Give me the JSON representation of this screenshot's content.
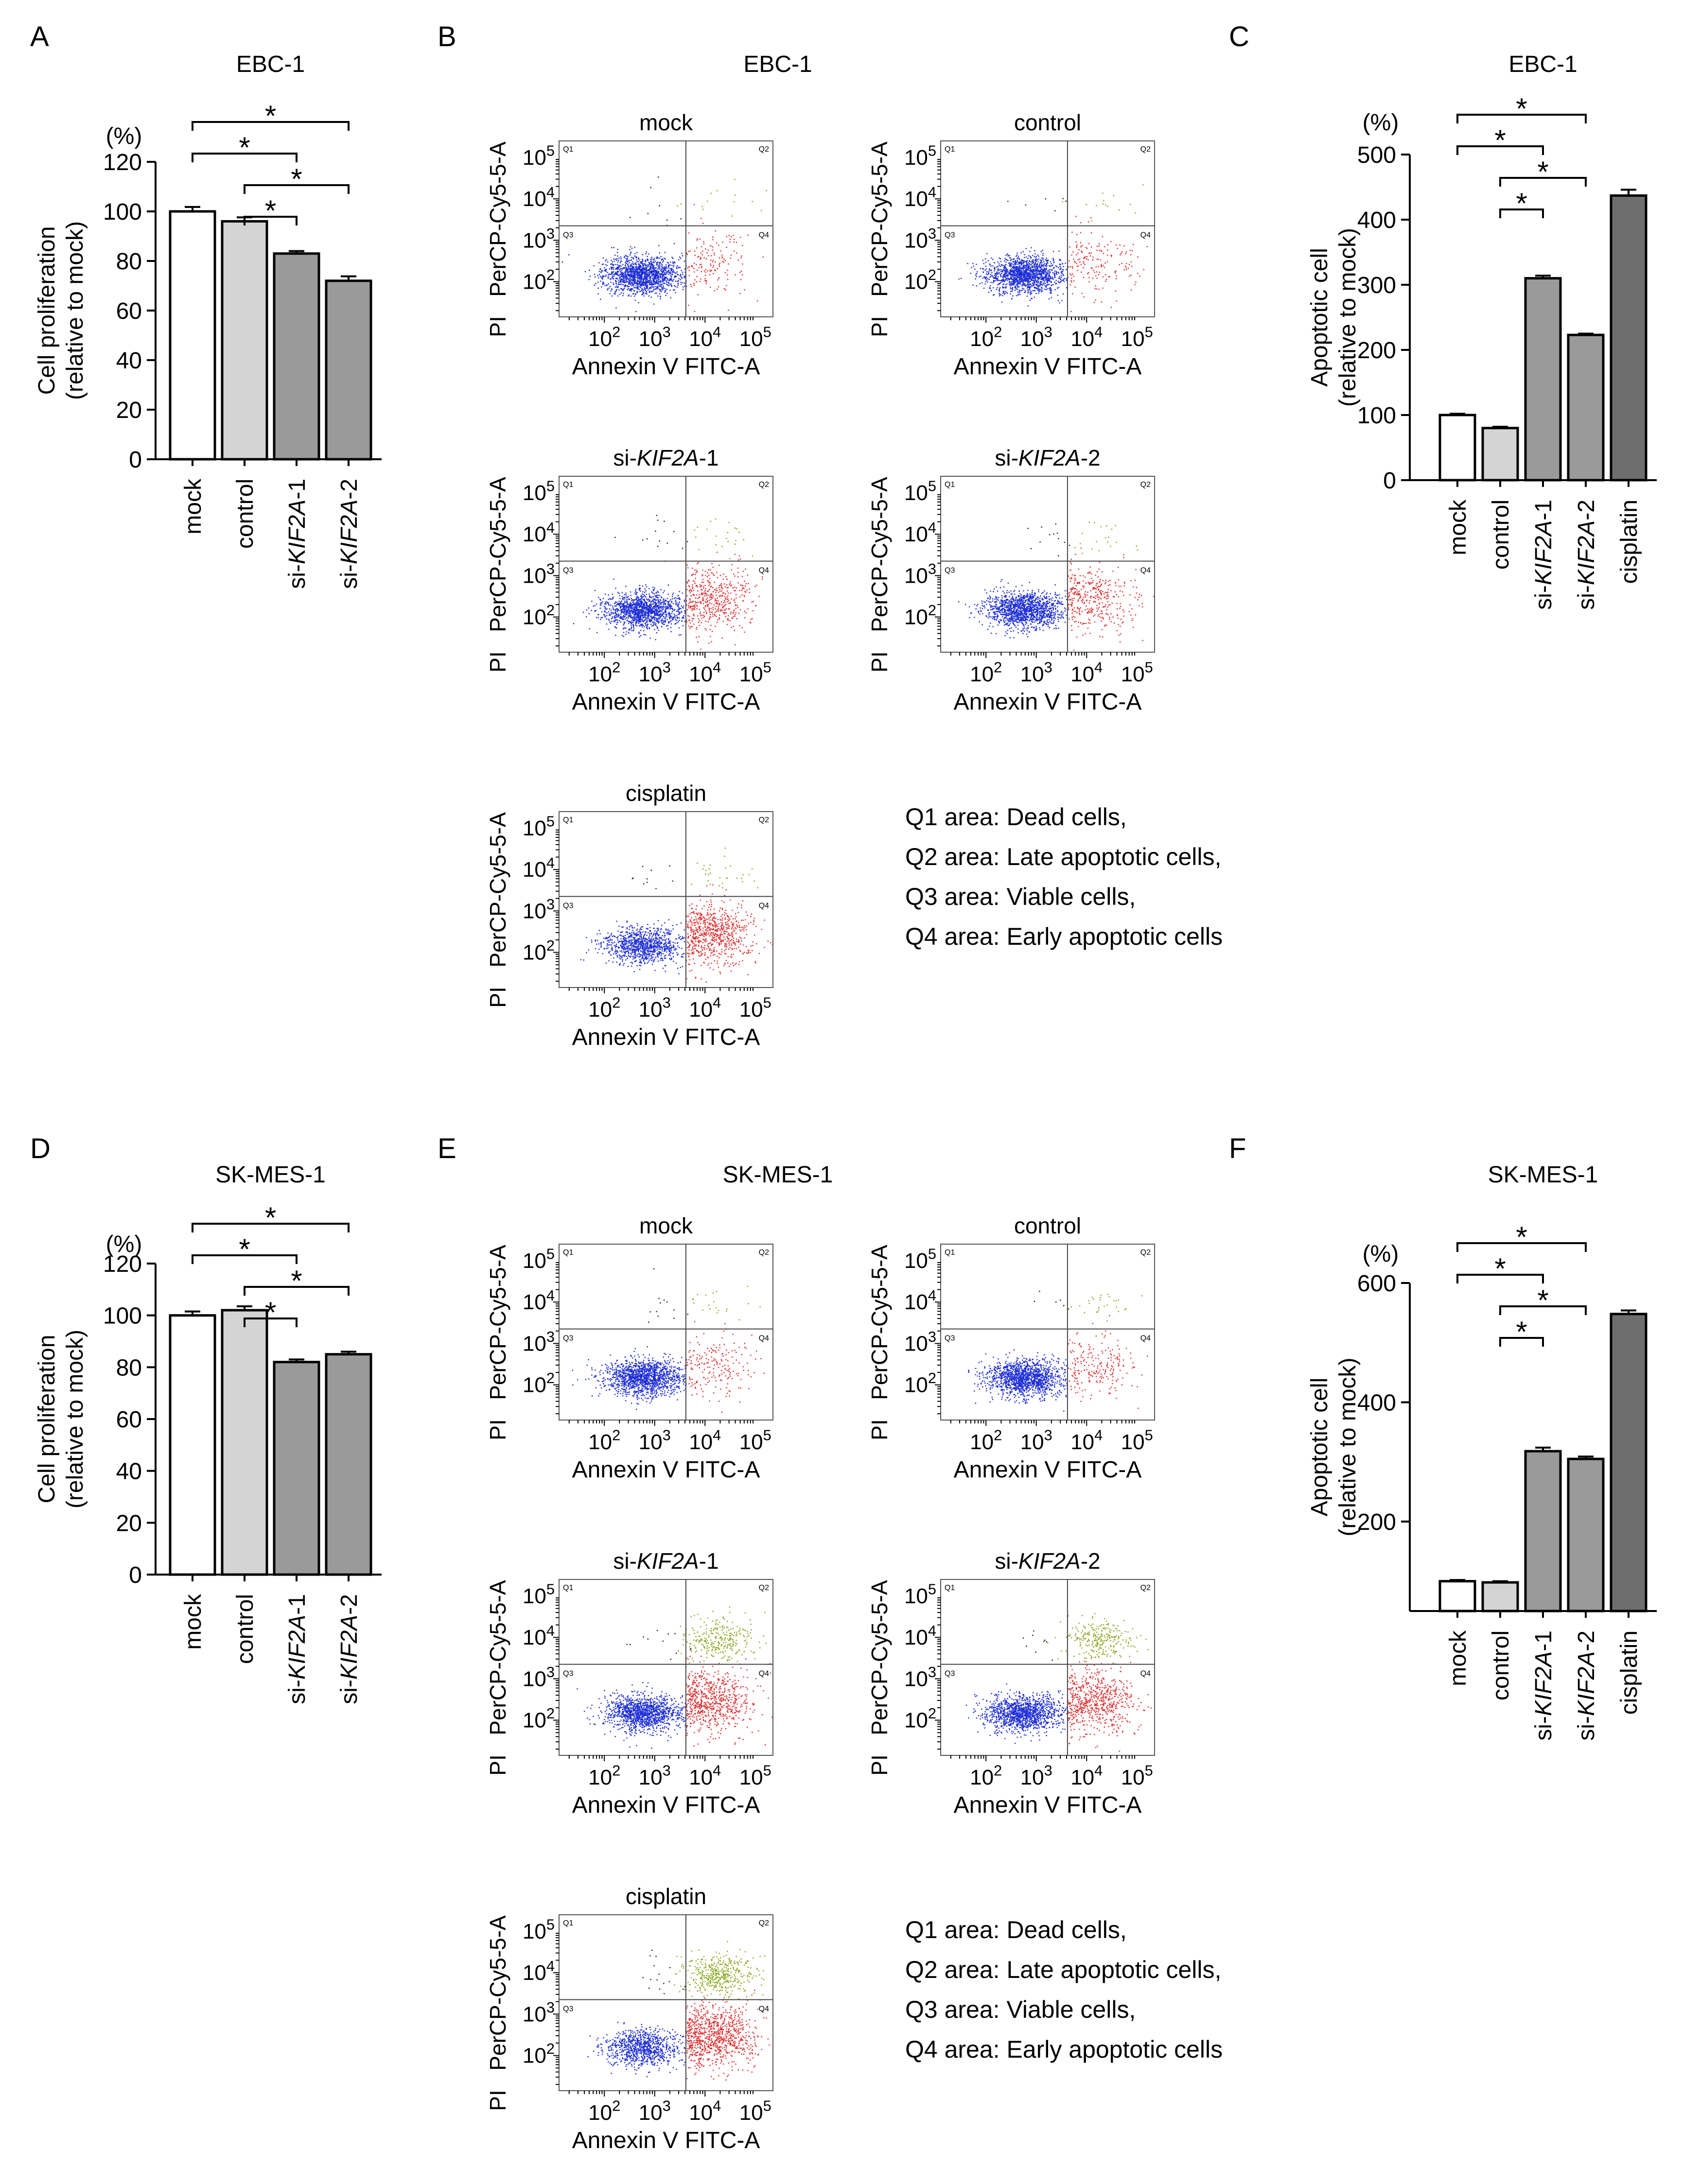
{
  "panel_letters": {
    "A": "A",
    "B": "B",
    "C": "C",
    "D": "D",
    "E": "E",
    "F": "F"
  },
  "legend": [
    "Q1 area: Dead cells,",
    "Q2 area: Late apoptotic cells,",
    "Q3 area: Viable cells,",
    "Q4 area: Early apoptotic cells"
  ],
  "colors": {
    "mock": "#ffffff",
    "control": "#d4d4d4",
    "si1": "#9a9a9a",
    "si2": "#9a9a9a",
    "cisplatin": "#6e6e6e",
    "viable": "#1f2fd6",
    "early": "#e03030",
    "late": "#8aa61e",
    "dead": "#222222"
  },
  "chart_data": [
    {
      "id": "A",
      "type": "bar",
      "title": "EBC-1",
      "ylabel": [
        "Cell proliferation",
        "(relative to mock)"
      ],
      "yunit": "(%)",
      "ylim": [
        0,
        120
      ],
      "yticks": [
        0,
        20,
        40,
        60,
        80,
        100,
        120
      ],
      "categories": [
        {
          "pre": "",
          "it": "",
          "post": "mock"
        },
        {
          "pre": "",
          "it": "",
          "post": "control"
        },
        {
          "pre": "si-",
          "it": "KIF2A",
          "post": "-1"
        },
        {
          "pre": "si-",
          "it": "KIF2A",
          "post": "-2"
        }
      ],
      "values": [
        100,
        96,
        83,
        72
      ],
      "errors": [
        1.8,
        1.6,
        1.0,
        1.8
      ],
      "significance": [
        {
          "from": 0,
          "to": 3,
          "label": "*"
        },
        {
          "from": 0,
          "to": 2,
          "label": "*"
        },
        {
          "from": 1,
          "to": 3,
          "label": "*"
        },
        {
          "from": 1,
          "to": 2,
          "label": "*"
        }
      ]
    },
    {
      "id": "C",
      "type": "bar",
      "title": "EBC-1",
      "ylabel": [
        "Apoptotic cell",
        "(relative to mock)"
      ],
      "yunit": "(%)",
      "ylim": [
        0,
        500
      ],
      "yticks": [
        0,
        100,
        200,
        300,
        400,
        500
      ],
      "categories": [
        {
          "pre": "",
          "it": "",
          "post": "mock"
        },
        {
          "pre": "",
          "it": "",
          "post": "control"
        },
        {
          "pre": "si-",
          "it": "KIF2A",
          "post": "-1"
        },
        {
          "pre": "si-",
          "it": "KIF2A",
          "post": "-2"
        },
        {
          "pre": "",
          "it": "",
          "post": "cisplatin"
        }
      ],
      "values": [
        100,
        80,
        310,
        223,
        437
      ],
      "errors": [
        2,
        2,
        4,
        2,
        9
      ],
      "significance": [
        {
          "from": 0,
          "to": 3,
          "label": "*"
        },
        {
          "from": 0,
          "to": 2,
          "label": "*"
        },
        {
          "from": 1,
          "to": 3,
          "label": "*"
        },
        {
          "from": 1,
          "to": 2,
          "label": "*"
        }
      ]
    },
    {
      "id": "D",
      "type": "bar",
      "title": "SK-MES-1",
      "ylabel": [
        "Cell proliferation",
        "(relative to mock)"
      ],
      "yunit": "(%)",
      "ylim": [
        0,
        120
      ],
      "yticks": [
        0,
        20,
        40,
        60,
        80,
        100,
        120
      ],
      "categories": [
        {
          "pre": "",
          "it": "",
          "post": "mock"
        },
        {
          "pre": "",
          "it": "",
          "post": "control"
        },
        {
          "pre": "si-",
          "it": "KIF2A",
          "post": "-1"
        },
        {
          "pre": "si-",
          "it": "KIF2A",
          "post": "-2"
        }
      ],
      "values": [
        100,
        102,
        82,
        85
      ],
      "errors": [
        1.5,
        1.5,
        1.0,
        1.0
      ],
      "significance": [
        {
          "from": 0,
          "to": 3,
          "label": "*"
        },
        {
          "from": 0,
          "to": 2,
          "label": "*"
        },
        {
          "from": 1,
          "to": 3,
          "label": "*"
        },
        {
          "from": 1,
          "to": 2,
          "label": "*"
        }
      ]
    },
    {
      "id": "F",
      "type": "bar",
      "title": "SK-MES-1",
      "ylabel": [
        "Apoptotic cell",
        "(relative to mock)"
      ],
      "yunit": "(%)",
      "ylim": [
        50,
        600
      ],
      "yticks": [
        200,
        400,
        600
      ],
      "categories": [
        {
          "pre": "",
          "it": "",
          "post": "mock"
        },
        {
          "pre": "",
          "it": "",
          "post": "control"
        },
        {
          "pre": "si-",
          "it": "KIF2A",
          "post": "-1"
        },
        {
          "pre": "si-",
          "it": "KIF2A",
          "post": "-2"
        },
        {
          "pre": "",
          "it": "",
          "post": "cisplatin"
        }
      ],
      "values": [
        100,
        98,
        318,
        305,
        548
      ],
      "errors": [
        2,
        2,
        6,
        4,
        6
      ],
      "significance": [
        {
          "from": 0,
          "to": 3,
          "label": "*"
        },
        {
          "from": 0,
          "to": 2,
          "label": "*"
        },
        {
          "from": 1,
          "to": 3,
          "label": "*"
        },
        {
          "from": 1,
          "to": 2,
          "label": "*"
        }
      ]
    }
  ],
  "flow": {
    "ylabel_prefix": "PI",
    "ylabel": "PerCP-Cy5-5-A",
    "xlabel_left": "Annexin V",
    "xlabel_right": "FITC-A",
    "tick_exponents": [
      2,
      3,
      4,
      5
    ],
    "tick_base": "10",
    "quadrant_labels": [
      "Q1",
      "Q2",
      "Q3",
      "Q4"
    ],
    "panels": [
      {
        "id": "B",
        "title": "EBC-1",
        "plots": [
          {
            "pre": "",
            "it": "",
            "post": "mock",
            "counts": {
              "viable": 1500,
              "early": 160,
              "late": 14,
              "dead": 8
            }
          },
          {
            "pre": "",
            "it": "",
            "post": "control",
            "counts": {
              "viable": 1500,
              "early": 180,
              "late": 14,
              "dead": 6
            }
          },
          {
            "pre": "si-",
            "it": "KIF2A",
            "post": "-1",
            "counts": {
              "viable": 1400,
              "early": 480,
              "late": 22,
              "dead": 14
            }
          },
          {
            "pre": "si-",
            "it": "KIF2A",
            "post": "-2",
            "counts": {
              "viable": 1400,
              "early": 380,
              "late": 20,
              "dead": 12
            }
          },
          {
            "pre": "",
            "it": "",
            "post": "cisplatin",
            "counts": {
              "viable": 1000,
              "early": 700,
              "late": 30,
              "dead": 10
            }
          }
        ]
      },
      {
        "id": "E",
        "title": "SK-MES-1",
        "plots": [
          {
            "pre": "",
            "it": "",
            "post": "mock",
            "counts": {
              "viable": 1400,
              "early": 200,
              "late": 20,
              "dead": 12
            }
          },
          {
            "pre": "",
            "it": "",
            "post": "control",
            "counts": {
              "viable": 1400,
              "early": 220,
              "late": 28,
              "dead": 6
            }
          },
          {
            "pre": "si-",
            "it": "KIF2A",
            "post": "-1",
            "counts": {
              "viable": 1300,
              "early": 700,
              "late": 280,
              "dead": 12
            }
          },
          {
            "pre": "si-",
            "it": "KIF2A",
            "post": "-2",
            "counts": {
              "viable": 1300,
              "early": 650,
              "late": 260,
              "dead": 10
            }
          },
          {
            "pre": "",
            "it": "",
            "post": "cisplatin",
            "counts": {
              "viable": 900,
              "early": 900,
              "late": 420,
              "dead": 16
            }
          }
        ]
      }
    ]
  }
}
